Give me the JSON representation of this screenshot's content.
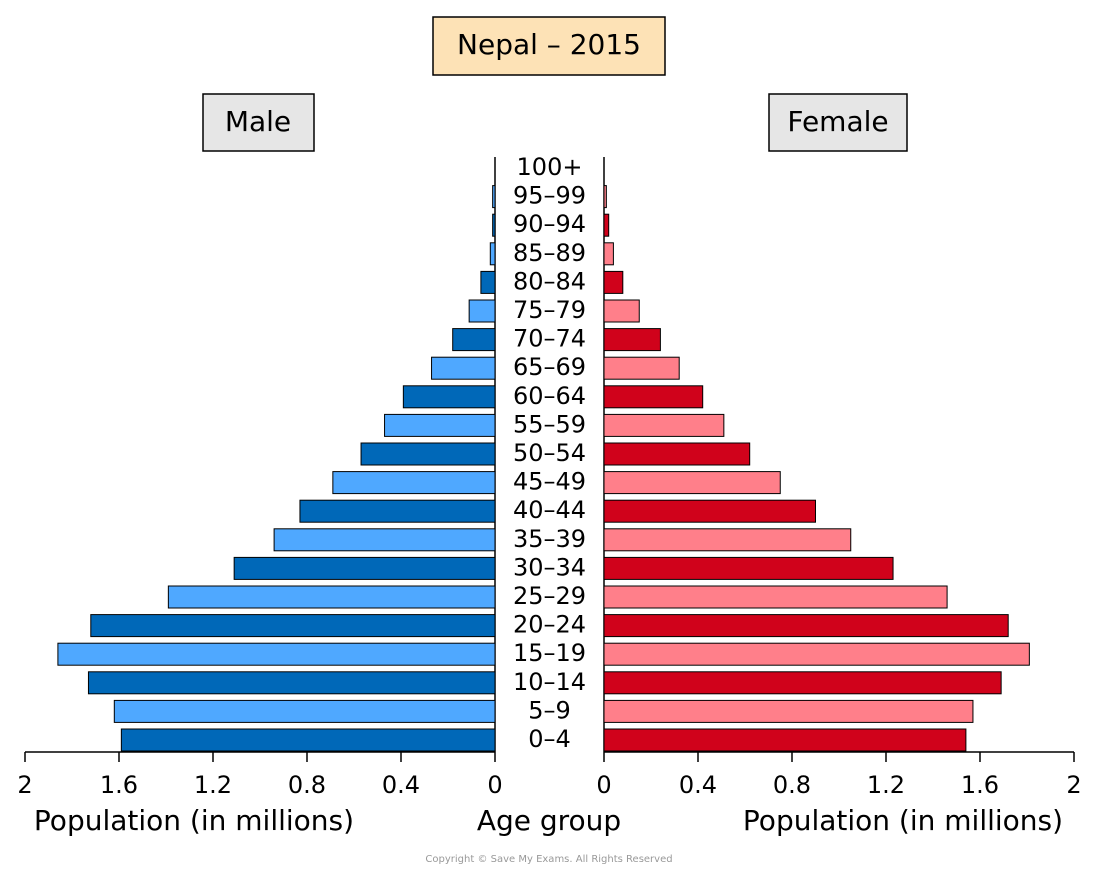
{
  "chart_data": {
    "type": "pyramid",
    "title": "Nepal – 2015",
    "categories": [
      "0–4",
      "5–9",
      "10–14",
      "15–19",
      "20–24",
      "25–29",
      "30–34",
      "35–39",
      "40–44",
      "45–49",
      "50–54",
      "55–59",
      "60–64",
      "65–69",
      "70–74",
      "75–79",
      "80–84",
      "85–89",
      "90–94",
      "95–99",
      "100+"
    ],
    "series": [
      {
        "name": "Male",
        "colors": [
          "#0068b8",
          "#4fa8ff"
        ],
        "values": [
          1.59,
          1.62,
          1.73,
          1.86,
          1.72,
          1.39,
          1.11,
          0.94,
          0.83,
          0.69,
          0.57,
          0.47,
          0.39,
          0.27,
          0.18,
          0.11,
          0.06,
          0.02,
          0.01,
          0.01,
          0
        ]
      },
      {
        "name": "Female",
        "colors": [
          "#d0021b",
          "#ff7f8a"
        ],
        "values": [
          1.54,
          1.57,
          1.69,
          1.81,
          1.72,
          1.46,
          1.23,
          1.05,
          0.9,
          0.75,
          0.62,
          0.51,
          0.42,
          0.32,
          0.24,
          0.15,
          0.08,
          0.04,
          0.02,
          0.01,
          0
        ]
      }
    ],
    "xlim": [
      0,
      2
    ],
    "xticks": [
      0,
      0.4,
      0.8,
      1.2,
      1.6,
      2
    ],
    "xlabel": "Population (in millions)",
    "category_label": "Age group",
    "footer": "Copyright © Save My Exams. All Rights Reserved"
  }
}
